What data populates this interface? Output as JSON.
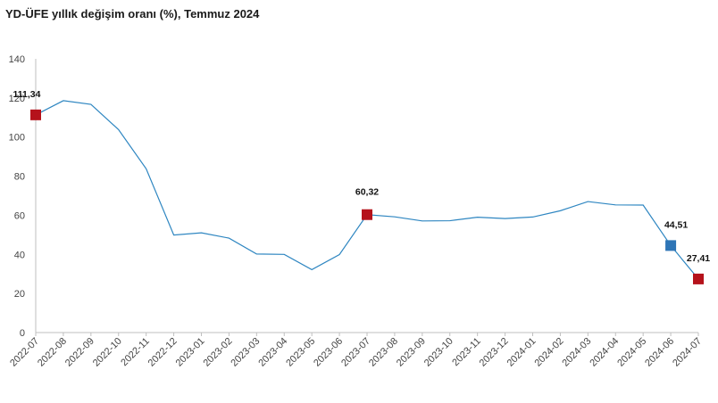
{
  "chart_data": {
    "type": "line",
    "title": "YD-ÜFE yıllık değişim oranı (%), Temmuz 2024",
    "categories": [
      "2022-07",
      "2022-08",
      "2022-09",
      "2022-10",
      "2022-11",
      "2022-12",
      "2023-01",
      "2023-02",
      "2023-03",
      "2023-04",
      "2023-05",
      "2023-06",
      "2023-07",
      "2023-08",
      "2023-09",
      "2023-10",
      "2023-11",
      "2023-12",
      "2024-01",
      "2024-02",
      "2024-03",
      "2024-04",
      "2024-05",
      "2024-06",
      "2024-07"
    ],
    "series": [
      {
        "values": [
          111.34,
          118.6,
          116.7,
          103.8,
          83.8,
          49.9,
          51.0,
          48.3,
          40.2,
          40.0,
          32.2,
          39.9,
          60.32,
          59.2,
          57.1,
          57.2,
          59.0,
          58.3,
          59.1,
          62.3,
          67.0,
          65.3,
          65.2,
          44.51,
          27.41
        ]
      }
    ],
    "yticks": [
      0,
      20,
      40,
      60,
      80,
      100,
      120,
      140
    ],
    "ylim": [
      0,
      140
    ],
    "xlabel": "",
    "ylabel": "",
    "line_color": "#2e86c1",
    "grid": false,
    "legend": "none",
    "highlights": [
      {
        "index": 0,
        "label": "111,34",
        "color": "#b5121b"
      },
      {
        "index": 12,
        "label": "60,32",
        "color": "#b5121b"
      },
      {
        "index": 23,
        "label": "44,51",
        "color": "#2e75b6"
      },
      {
        "index": 24,
        "label": "27,41",
        "color": "#b5121b"
      }
    ]
  }
}
